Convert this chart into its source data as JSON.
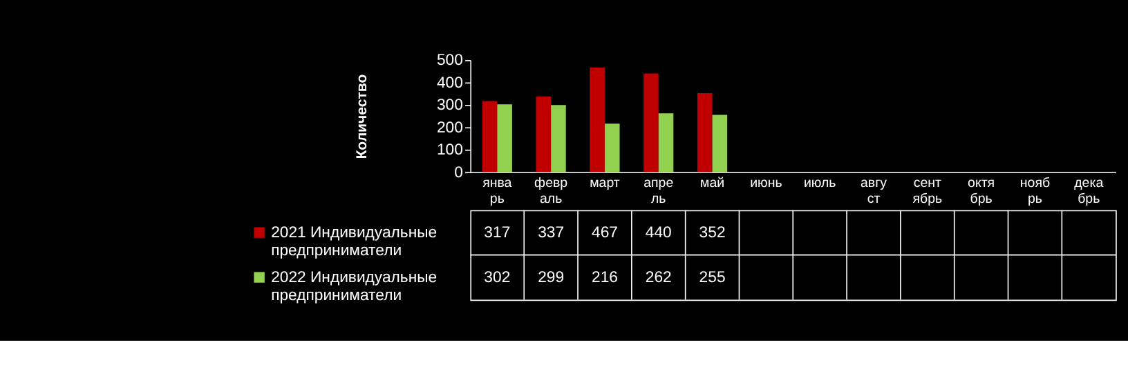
{
  "chart_data": {
    "type": "bar",
    "ylabel": "Количество",
    "categories": [
      "январь",
      "февраль",
      "март",
      "апрель",
      "май",
      "июнь",
      "июль",
      "август",
      "сентябрь",
      "октябрь",
      "ноябрь",
      "декабрь"
    ],
    "series": [
      {
        "name": "2021 Индивидуальные предприниматели",
        "color": "#c00000",
        "values": [
          317,
          337,
          467,
          440,
          352,
          null,
          null,
          null,
          null,
          null,
          null,
          null
        ]
      },
      {
        "name": "2022 Индивидуальные предприниматели",
        "color": "#92d050",
        "values": [
          302,
          299,
          216,
          262,
          255,
          null,
          null,
          null,
          null,
          null,
          null,
          null
        ]
      }
    ],
    "ylim": [
      0,
      500
    ],
    "yticks": [
      0,
      100,
      200,
      300,
      400,
      500
    ],
    "grid": false,
    "data_labels": true,
    "legend": "bottom left"
  }
}
